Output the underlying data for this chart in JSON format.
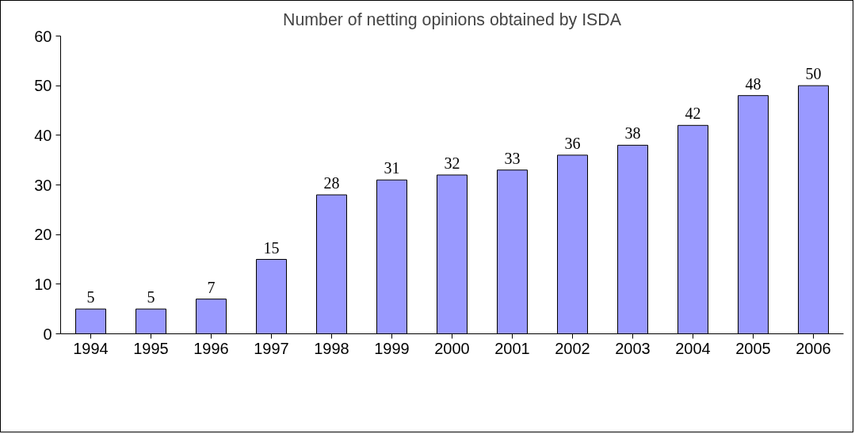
{
  "chart_data": {
    "type": "bar",
    "title": "Number of netting opinions obtained by ISDA",
    "categories": [
      "1994",
      "1995",
      "1996",
      "1997",
      "1998",
      "1999",
      "2000",
      "2001",
      "2002",
      "2003",
      "2004",
      "2005",
      "2006"
    ],
    "values": [
      5,
      5,
      7,
      15,
      28,
      31,
      32,
      33,
      36,
      38,
      42,
      48,
      50
    ],
    "color": "#9999ff",
    "ylim": [
      0,
      60
    ],
    "yticks": [
      0,
      10,
      20,
      30,
      40,
      50,
      60
    ],
    "grid": false,
    "data_labels": true
  }
}
